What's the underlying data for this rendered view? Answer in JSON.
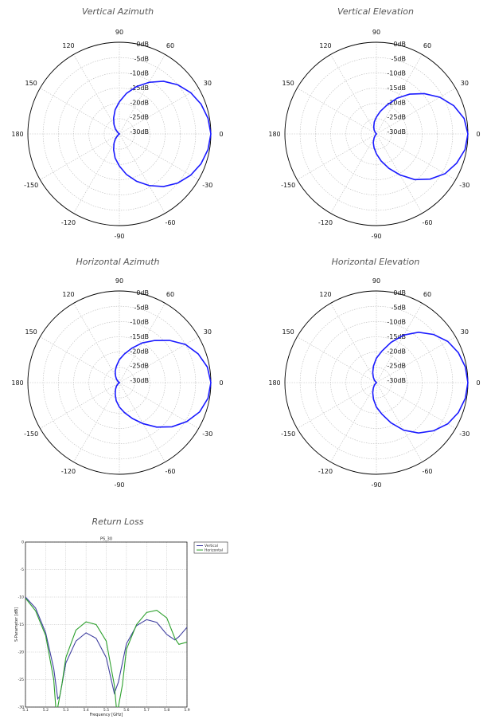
{
  "chart_data": [
    {
      "type": "polar",
      "title": "Vertical Azimuth",
      "angle_ticks": [
        "90",
        "60",
        "30",
        "0",
        "-30",
        "-60",
        "-90",
        "-120",
        "-150",
        "180",
        "150",
        "120"
      ],
      "radial_labels": [
        "0dB",
        "-5dB",
        "-10dB",
        "-15dB",
        "-20dB",
        "-25dB",
        "-30dB"
      ],
      "rlim": [
        -30,
        0
      ],
      "grid": true,
      "series": [
        {
          "angles": [
            0,
            10,
            20,
            30,
            40,
            50,
            60,
            70,
            80,
            90,
            100,
            110,
            120,
            130,
            140,
            150,
            160,
            170,
            180,
            -170,
            -160,
            -150,
            -140,
            -130,
            -120,
            -110,
            -100,
            -90,
            -80,
            -70,
            -60,
            -50,
            -40,
            -30,
            -20,
            -10
          ],
          "gains": [
            0,
            -0.5,
            -1.5,
            -3,
            -5,
            -7.5,
            -10.5,
            -13.5,
            -16.5,
            -19.5,
            -22,
            -24.5,
            -26.5,
            -28,
            -29.5,
            -30,
            -30,
            -30,
            -30,
            -30,
            -30,
            -30,
            -29.5,
            -28,
            -26.5,
            -24.5,
            -22,
            -19.5,
            -16.5,
            -13.5,
            -10.5,
            -7.5,
            -5,
            -3,
            -1.5,
            -0.5
          ],
          "color": "#1a1aff"
        }
      ]
    },
    {
      "type": "polar",
      "title": "Vertical Elevation",
      "angle_ticks": [
        "90",
        "60",
        "30",
        "0",
        "-30",
        "-60",
        "-90",
        "-120",
        "-150",
        "180",
        "150",
        "120"
      ],
      "radial_labels": [
        "0dB",
        "-5dB",
        "-10dB",
        "-15dB",
        "-20dB",
        "-25dB",
        "-30dB"
      ],
      "rlim": [
        -30,
        0
      ],
      "grid": true,
      "series": [
        {
          "angles": [
            0,
            10,
            20,
            30,
            40,
            50,
            60,
            70,
            80,
            90,
            100,
            110,
            120,
            130,
            140,
            150,
            160,
            170,
            180,
            -170,
            -160,
            -150,
            -140,
            -130,
            -120,
            -110,
            -100,
            -90,
            -80,
            -70,
            -60,
            -50,
            -40,
            -30,
            -20,
            -10
          ],
          "gains": [
            0,
            -0.8,
            -3,
            -6,
            -9.5,
            -13,
            -16.5,
            -20,
            -22.5,
            -24.5,
            -26,
            -27.5,
            -28.5,
            -29.5,
            -30,
            -30,
            -30,
            -30,
            -30,
            -30,
            -30,
            -30,
            -30,
            -29.5,
            -28.5,
            -27,
            -25.5,
            -23.5,
            -21,
            -18,
            -14.5,
            -10.5,
            -7,
            -4,
            -2,
            -0.5
          ],
          "color": "#1a1aff"
        }
      ]
    },
    {
      "type": "polar",
      "title": "Horizontal Azimuth",
      "angle_ticks": [
        "90",
        "60",
        "30",
        "0",
        "-30",
        "-60",
        "-90",
        "-120",
        "-150",
        "180",
        "150",
        "120"
      ],
      "radial_labels": [
        "0dB",
        "-5dB",
        "-10dB",
        "-15dB",
        "-20dB",
        "-25dB",
        "-30dB"
      ],
      "rlim": [
        -30,
        0
      ],
      "grid": true,
      "series": [
        {
          "angles": [
            0,
            10,
            20,
            30,
            40,
            50,
            60,
            70,
            80,
            90,
            100,
            110,
            120,
            130,
            140,
            150,
            160,
            170,
            180,
            -170,
            -160,
            -150,
            -140,
            -130,
            -120,
            -110,
            -100,
            -90,
            -80,
            -70,
            -60,
            -50,
            -40,
            -30,
            -20,
            -10
          ],
          "gains": [
            0,
            -0.7,
            -2.5,
            -5,
            -8.5,
            -12,
            -15,
            -18,
            -20.5,
            -22.5,
            -24.5,
            -26,
            -27.5,
            -28.5,
            -29.5,
            -30,
            -30,
            -30,
            -30,
            -30,
            -30,
            -30,
            -29.5,
            -28.5,
            -27.5,
            -26,
            -24,
            -22,
            -20,
            -17.5,
            -14.5,
            -11,
            -7.5,
            -4.5,
            -2,
            -0.5
          ],
          "color": "#1a1aff"
        }
      ]
    },
    {
      "type": "polar",
      "title": "Horizontal Elevation",
      "angle_ticks": [
        "90",
        "60",
        "30",
        "0",
        "-30",
        "-60",
        "-90",
        "-120",
        "-150",
        "180",
        "150",
        "120"
      ],
      "radial_labels": [
        "0dB",
        "-5dB",
        "-10dB",
        "-15dB",
        "-20dB",
        "-25dB",
        "-30dB"
      ],
      "rlim": [
        -30,
        0
      ],
      "grid": true,
      "series": [
        {
          "angles": [
            0,
            10,
            20,
            30,
            40,
            50,
            60,
            70,
            80,
            90,
            100,
            110,
            120,
            130,
            140,
            150,
            160,
            170,
            180,
            -170,
            -160,
            -150,
            -140,
            -130,
            -120,
            -110,
            -100,
            -90,
            -80,
            -70,
            -60,
            -50,
            -40,
            -30,
            -20,
            -10
          ],
          "gains": [
            0,
            -0.4,
            -1.4,
            -3,
            -5.5,
            -8.5,
            -12,
            -16,
            -19.5,
            -22,
            -24.5,
            -26.5,
            -28,
            -29,
            -30,
            -30,
            -30,
            -30,
            -30,
            -30,
            -30,
            -30,
            -30,
            -29,
            -28,
            -26.5,
            -24.5,
            -22,
            -19.5,
            -16,
            -12,
            -8.5,
            -5.5,
            -3,
            -1.4,
            -0.4
          ],
          "color": "#1a1aff"
        }
      ]
    },
    {
      "type": "line",
      "title": "Return Loss",
      "subtitle": "PS_30",
      "xlabel": "Frequency [GHz]",
      "ylabel": "S-Parameter [dB]",
      "xlim": [
        5.1,
        5.9
      ],
      "ylim": [
        -30,
        0
      ],
      "xticks": [
        "5.1",
        "5.2",
        "5.3",
        "5.4",
        "5.5",
        "5.6",
        "5.7",
        "5.8",
        "5.9"
      ],
      "yticks": [
        "0",
        "-5",
        "-10",
        "-15",
        "-20",
        "-25",
        "-30"
      ],
      "grid": true,
      "legend_position": "outside-top-right",
      "series": [
        {
          "name": "Vertical",
          "color": "#4040a0",
          "x": [
            5.1,
            5.15,
            5.2,
            5.24,
            5.26,
            5.27,
            5.3,
            5.35,
            5.4,
            5.45,
            5.5,
            5.54,
            5.56,
            5.6,
            5.65,
            5.7,
            5.75,
            5.8,
            5.84,
            5.86,
            5.9
          ],
          "y": [
            -10,
            -12,
            -16.5,
            -23,
            -28.5,
            -28,
            -22,
            -18,
            -16.5,
            -17.5,
            -21,
            -27.5,
            -25.5,
            -18.5,
            -15.2,
            -14.1,
            -14.6,
            -16.8,
            -17.8,
            -17.2,
            -15.5
          ]
        },
        {
          "name": "Horizontal",
          "color": "#2ca02c",
          "x": [
            5.1,
            5.15,
            5.2,
            5.24,
            5.25,
            5.26,
            5.28,
            5.3,
            5.35,
            5.4,
            5.45,
            5.5,
            5.54,
            5.55,
            5.56,
            5.58,
            5.6,
            5.65,
            5.7,
            5.75,
            5.8,
            5.84,
            5.86,
            5.9
          ],
          "y": [
            -10.2,
            -12.5,
            -17,
            -25,
            -30,
            -30,
            -26,
            -21,
            -16,
            -14.5,
            -15,
            -18,
            -26,
            -30,
            -30,
            -26,
            -19.5,
            -15,
            -12.8,
            -12.4,
            -13.8,
            -17.5,
            -18.6,
            -18.2
          ]
        }
      ]
    }
  ]
}
